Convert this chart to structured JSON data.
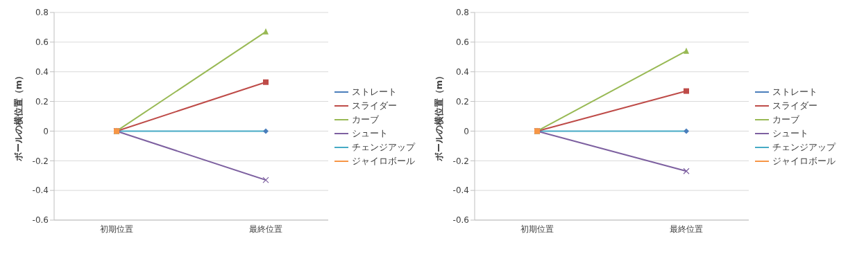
{
  "chart_data": [
    {
      "type": "line",
      "categories": [
        "初期位置",
        "最終位置"
      ],
      "ylabel": "ボールの横位置（m）",
      "ylim": [
        -0.6,
        0.8
      ],
      "yticks": [
        -0.6,
        -0.4,
        -0.2,
        0,
        0.2,
        0.4,
        0.6,
        0.8
      ],
      "grid": "y",
      "legend": "right",
      "series": [
        {
          "name": "ストレート",
          "color": "#4a7ebb",
          "marker": "diamond",
          "values": [
            null,
            0
          ]
        },
        {
          "name": "スライダー",
          "color": "#be4b48",
          "marker": "square",
          "values": [
            0,
            0.33
          ]
        },
        {
          "name": "カーブ",
          "color": "#98b954",
          "marker": "triangle",
          "values": [
            0,
            0.67
          ]
        },
        {
          "name": "シュート",
          "color": "#7d60a0",
          "marker": "cross",
          "values": [
            0,
            -0.33
          ]
        },
        {
          "name": "チェンジアップ",
          "color": "#46aac5",
          "marker": "none",
          "values": [
            0,
            0
          ]
        },
        {
          "name": "ジャイロボール",
          "color": "#f79646",
          "marker": "square",
          "values": [
            0,
            null
          ]
        }
      ]
    },
    {
      "type": "line",
      "categories": [
        "初期位置",
        "最終位置"
      ],
      "ylabel": "ボールの横位置（m）",
      "ylim": [
        -0.6,
        0.8
      ],
      "yticks": [
        -0.6,
        -0.4,
        -0.2,
        0,
        0.2,
        0.4,
        0.6,
        0.8
      ],
      "grid": "y",
      "legend": "right",
      "series": [
        {
          "name": "ストレート",
          "color": "#4a7ebb",
          "marker": "diamond",
          "values": [
            null,
            0
          ]
        },
        {
          "name": "スライダー",
          "color": "#be4b48",
          "marker": "square",
          "values": [
            0,
            0.27
          ]
        },
        {
          "name": "カーブ",
          "color": "#98b954",
          "marker": "triangle",
          "values": [
            0,
            0.54
          ]
        },
        {
          "name": "シュート",
          "color": "#7d60a0",
          "marker": "cross",
          "values": [
            0,
            -0.27
          ]
        },
        {
          "name": "チェンジアップ",
          "color": "#46aac5",
          "marker": "none",
          "values": [
            0,
            0
          ]
        },
        {
          "name": "ジャイロボール",
          "color": "#f79646",
          "marker": "square",
          "values": [
            0,
            null
          ]
        }
      ]
    }
  ]
}
